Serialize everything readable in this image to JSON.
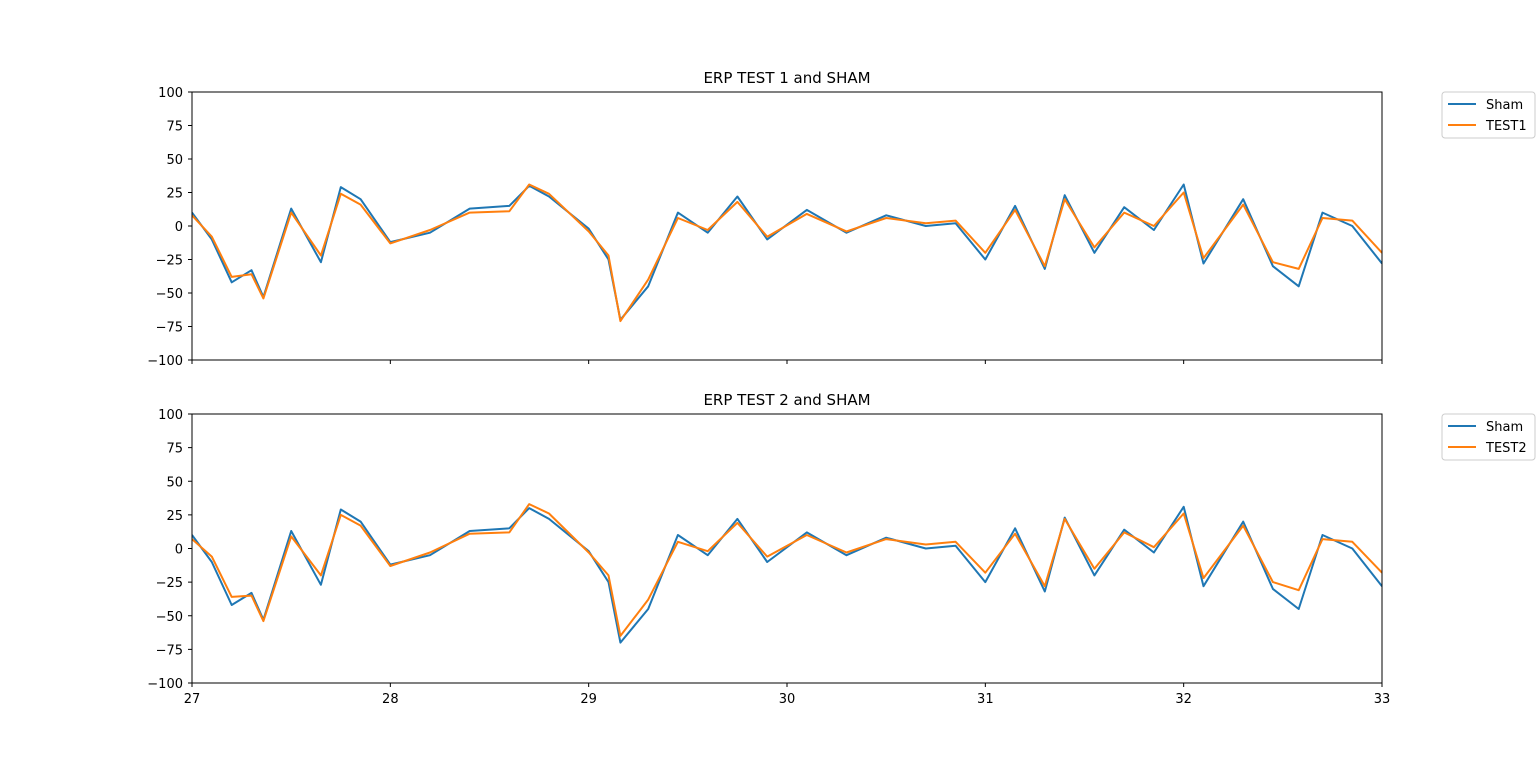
{
  "chart_data": [
    {
      "type": "line",
      "title": "ERP TEST 1 and SHAM",
      "xlim": [
        27,
        33
      ],
      "ylim": [
        -100,
        100
      ],
      "yticks": [
        -100,
        -75,
        -50,
        -25,
        0,
        25,
        50,
        75,
        100
      ],
      "ytick_labels": [
        "−100",
        "−75",
        "−50",
        "−25",
        "0",
        "25",
        "50",
        "75",
        "100"
      ],
      "xticks": [
        27,
        28,
        29,
        30,
        31,
        32,
        33
      ],
      "xtick_labels": [],
      "legend": "outside-top-right",
      "grid": false,
      "series": [
        {
          "name": "Sham",
          "color": "#1f77b4",
          "x": [
            27.0,
            27.1,
            27.2,
            27.3,
            27.36,
            27.5,
            27.65,
            27.75,
            27.85,
            28.0,
            28.2,
            28.4,
            28.6,
            28.7,
            28.8,
            29.0,
            29.1,
            29.16,
            29.3,
            29.45,
            29.6,
            29.75,
            29.9,
            30.1,
            30.3,
            30.5,
            30.7,
            30.85,
            31.0,
            31.15,
            31.3,
            31.4,
            31.55,
            31.7,
            31.85,
            32.0,
            32.1,
            32.3,
            32.45,
            32.58,
            32.7,
            32.85,
            33.0
          ],
          "y": [
            10,
            -10,
            -42,
            -33,
            -53,
            13,
            -27,
            29,
            20,
            -12,
            -5,
            13,
            15,
            30,
            22,
            -2,
            -25,
            -70,
            -45,
            10,
            -5,
            22,
            -10,
            12,
            -5,
            8,
            0,
            2,
            -25,
            15,
            -32,
            23,
            -20,
            14,
            -3,
            31,
            -28,
            20,
            -30,
            -45,
            10,
            0,
            -28
          ]
        },
        {
          "name": "TEST1",
          "color": "#ff7f0e",
          "x": [
            27.0,
            27.1,
            27.2,
            27.3,
            27.36,
            27.5,
            27.65,
            27.75,
            27.85,
            28.0,
            28.2,
            28.4,
            28.6,
            28.7,
            28.8,
            29.0,
            29.1,
            29.16,
            29.3,
            29.45,
            29.6,
            29.75,
            29.9,
            30.1,
            30.3,
            30.5,
            30.7,
            30.85,
            31.0,
            31.15,
            31.3,
            31.4,
            31.55,
            31.7,
            31.85,
            32.0,
            32.1,
            32.3,
            32.45,
            32.58,
            32.7,
            32.85,
            33.0
          ],
          "y": [
            8,
            -8,
            -38,
            -36,
            -54,
            10,
            -22,
            24,
            16,
            -13,
            -3,
            10,
            11,
            31,
            24,
            -4,
            -22,
            -71,
            -40,
            6,
            -3,
            18,
            -8,
            9,
            -4,
            6,
            2,
            4,
            -20,
            12,
            -30,
            20,
            -16,
            10,
            0,
            25,
            -24,
            16,
            -27,
            -32,
            6,
            4,
            -20
          ]
        }
      ]
    },
    {
      "type": "line",
      "title": "ERP TEST 2 and SHAM",
      "xlim": [
        27,
        33
      ],
      "ylim": [
        -100,
        100
      ],
      "yticks": [
        -100,
        -75,
        -50,
        -25,
        0,
        25,
        50,
        75,
        100
      ],
      "ytick_labels": [
        "−100",
        "−75",
        "−50",
        "−25",
        "0",
        "25",
        "50",
        "75",
        "100"
      ],
      "xticks": [
        27,
        28,
        29,
        30,
        31,
        32,
        33
      ],
      "xtick_labels": [
        "27",
        "28",
        "29",
        "30",
        "31",
        "32",
        "33"
      ],
      "legend": "outside-top-right",
      "grid": false,
      "series": [
        {
          "name": "Sham",
          "color": "#1f77b4",
          "x": [
            27.0,
            27.1,
            27.2,
            27.3,
            27.36,
            27.5,
            27.65,
            27.75,
            27.85,
            28.0,
            28.2,
            28.4,
            28.6,
            28.7,
            28.8,
            29.0,
            29.1,
            29.16,
            29.3,
            29.45,
            29.6,
            29.75,
            29.9,
            30.1,
            30.3,
            30.5,
            30.7,
            30.85,
            31.0,
            31.15,
            31.3,
            31.4,
            31.55,
            31.7,
            31.85,
            32.0,
            32.1,
            32.3,
            32.45,
            32.58,
            32.7,
            32.85,
            33.0
          ],
          "y": [
            10,
            -10,
            -42,
            -33,
            -53,
            13,
            -27,
            29,
            20,
            -12,
            -5,
            13,
            15,
            30,
            22,
            -2,
            -25,
            -70,
            -45,
            10,
            -5,
            22,
            -10,
            12,
            -5,
            8,
            0,
            2,
            -25,
            15,
            -32,
            23,
            -20,
            14,
            -3,
            31,
            -28,
            20,
            -30,
            -45,
            10,
            0,
            -28
          ]
        },
        {
          "name": "TEST2",
          "color": "#ff7f0e",
          "x": [
            27.0,
            27.1,
            27.2,
            27.3,
            27.36,
            27.5,
            27.65,
            27.75,
            27.85,
            28.0,
            28.2,
            28.4,
            28.6,
            28.7,
            28.8,
            29.0,
            29.1,
            29.16,
            29.3,
            29.45,
            29.6,
            29.75,
            29.9,
            30.1,
            30.3,
            30.5,
            30.7,
            30.85,
            31.0,
            31.15,
            31.3,
            31.4,
            31.55,
            31.7,
            31.85,
            32.0,
            32.1,
            32.3,
            32.45,
            32.58,
            32.7,
            32.85,
            33.0
          ],
          "y": [
            7,
            -6,
            -36,
            -35,
            -54,
            9,
            -20,
            25,
            17,
            -13,
            -3,
            11,
            12,
            33,
            26,
            -3,
            -20,
            -65,
            -38,
            5,
            -2,
            19,
            -6,
            10,
            -3,
            7,
            3,
            5,
            -18,
            11,
            -28,
            22,
            -15,
            12,
            1,
            26,
            -22,
            17,
            -25,
            -31,
            7,
            5,
            -18
          ]
        }
      ]
    }
  ]
}
